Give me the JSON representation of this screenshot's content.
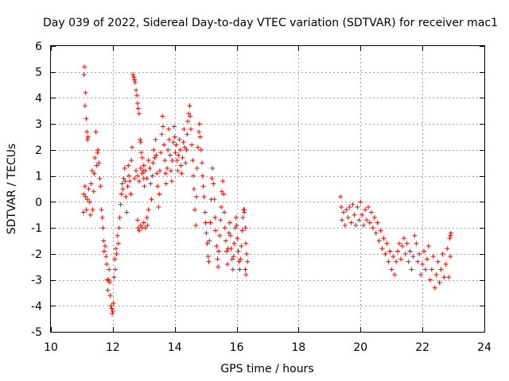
{
  "chart_data": {
    "type": "scatter",
    "title": "Day 039 of 2022, Sidereal Day-to-day VTEC variation (SDTVAR) for receiver mac1",
    "xlabel": "GPS time / hours",
    "ylabel": "SDTVAR / TECUs",
    "xlim": [
      10,
      24
    ],
    "ylim": [
      -5,
      6
    ],
    "x_ticks": [
      "10",
      "12",
      "14",
      "16",
      "18",
      "20",
      "22",
      "24"
    ],
    "y_ticks": [
      "6",
      "5",
      "4",
      "3",
      "2",
      "1",
      "0",
      "-1",
      "-2",
      "-3",
      "-4",
      "-5"
    ],
    "grid": true,
    "marker": "+",
    "series": [
      {
        "name": "SDTVAR",
        "color": "#ff0000",
        "points": [
          [
            11.05,
            -0.4
          ],
          [
            11.06,
            0.3
          ],
          [
            11.07,
            4.9
          ],
          [
            11.08,
            5.2
          ],
          [
            11.1,
            3.7
          ],
          [
            11.12,
            4.2
          ],
          [
            11.14,
            3.2
          ],
          [
            11.16,
            2.7
          ],
          [
            11.18,
            2.4
          ],
          [
            11.2,
            2.5
          ],
          [
            11.1,
            0.6
          ],
          [
            11.12,
            0.2
          ],
          [
            11.15,
            -0.3
          ],
          [
            11.18,
            0.1
          ],
          [
            11.22,
            0.5
          ],
          [
            11.25,
            0.0
          ],
          [
            11.28,
            -0.5
          ],
          [
            11.3,
            0.7
          ],
          [
            11.33,
            1.2
          ],
          [
            11.35,
            -0.3
          ],
          [
            11.38,
            0.4
          ],
          [
            11.4,
            1.1
          ],
          [
            11.42,
            1.7
          ],
          [
            11.45,
            2.7
          ],
          [
            11.48,
            1.4
          ],
          [
            11.5,
            1.9
          ],
          [
            11.52,
            2.0
          ],
          [
            11.55,
            1.5
          ],
          [
            11.58,
            0.9
          ],
          [
            11.6,
            0.6
          ],
          [
            11.63,
            -0.3
          ],
          [
            11.66,
            -0.6
          ],
          [
            11.68,
            -1.0
          ],
          [
            11.7,
            -1.5
          ],
          [
            11.72,
            -1.9
          ],
          [
            11.75,
            -1.7
          ],
          [
            11.78,
            -2.1
          ],
          [
            11.8,
            -2.4
          ],
          [
            11.82,
            -3.0
          ],
          [
            11.84,
            -3.4
          ],
          [
            11.86,
            -3.0
          ],
          [
            11.88,
            -2.6
          ],
          [
            11.9,
            -3.1
          ],
          [
            11.92,
            -3.6
          ],
          [
            11.94,
            -4.0
          ],
          [
            11.96,
            -4.1
          ],
          [
            11.98,
            -4.3
          ],
          [
            12.0,
            -4.2
          ],
          [
            12.02,
            -3.9
          ],
          [
            12.04,
            -2.9
          ],
          [
            12.06,
            -2.2
          ],
          [
            12.08,
            -2.6
          ],
          [
            12.1,
            -1.8
          ],
          [
            12.12,
            -2.0
          ],
          [
            12.15,
            -1.3
          ],
          [
            12.18,
            -1.6
          ],
          [
            12.2,
            -1.0
          ],
          [
            12.22,
            -0.6
          ],
          [
            12.25,
            -0.1
          ],
          [
            12.28,
            0.3
          ],
          [
            12.3,
            0.7
          ],
          [
            12.32,
            0.5
          ],
          [
            12.35,
            0.9
          ],
          [
            12.38,
            1.3
          ],
          [
            12.4,
            0.8
          ],
          [
            12.42,
            0.2
          ],
          [
            12.45,
            -0.4
          ],
          [
            12.48,
            0.6
          ],
          [
            12.5,
            1.4
          ],
          [
            12.52,
            1.0
          ],
          [
            12.55,
            0.8
          ],
          [
            12.58,
            0.3
          ],
          [
            12.6,
            1.6
          ],
          [
            12.62,
            2.1
          ],
          [
            12.65,
            4.9
          ],
          [
            12.68,
            4.8
          ],
          [
            12.7,
            4.7
          ],
          [
            12.72,
            4.6
          ],
          [
            12.75,
            4.3
          ],
          [
            12.78,
            4.1
          ],
          [
            12.8,
            3.8
          ],
          [
            12.82,
            3.6
          ],
          [
            12.85,
            3.4
          ],
          [
            12.88,
            2.4
          ],
          [
            12.9,
            2.3
          ],
          [
            12.92,
            1.9
          ],
          [
            12.95,
            1.7
          ],
          [
            12.98,
            1.2
          ],
          [
            13.0,
            0.9
          ],
          [
            13.02,
            0.6
          ],
          [
            12.8,
            -0.7
          ],
          [
            12.82,
            -1.0
          ],
          [
            12.85,
            -1.1
          ],
          [
            12.9,
            -0.9
          ],
          [
            12.95,
            -1.0
          ],
          [
            13.0,
            -0.8
          ],
          [
            13.05,
            -1.0
          ],
          [
            13.1,
            -0.6
          ],
          [
            13.12,
            -0.9
          ],
          [
            13.15,
            -0.3
          ],
          [
            12.7,
            0.9
          ],
          [
            12.75,
            1.2
          ],
          [
            12.8,
            1.0
          ],
          [
            12.85,
            0.8
          ],
          [
            12.9,
            1.3
          ],
          [
            12.95,
            1.1
          ],
          [
            13.0,
            1.4
          ],
          [
            13.05,
            1.2
          ],
          [
            13.1,
            0.9
          ],
          [
            13.15,
            1.6
          ],
          [
            13.2,
            1.3
          ],
          [
            13.22,
            0.7
          ],
          [
            13.25,
            0.1
          ],
          [
            13.28,
            1.0
          ],
          [
            13.3,
            1.5
          ],
          [
            13.32,
            2.0
          ],
          [
            13.35,
            1.7
          ],
          [
            13.38,
            2.4
          ],
          [
            13.4,
            1.8
          ],
          [
            13.42,
            1.1
          ],
          [
            13.45,
            0.6
          ],
          [
            13.48,
            -0.2
          ],
          [
            13.5,
            0.3
          ],
          [
            13.52,
            1.2
          ],
          [
            13.55,
            1.9
          ],
          [
            13.58,
            2.6
          ],
          [
            13.6,
            3.3
          ],
          [
            13.62,
            2.9
          ],
          [
            13.65,
            2.2
          ],
          [
            13.68,
            1.6
          ],
          [
            13.7,
            1.1
          ],
          [
            13.72,
            0.7
          ],
          [
            13.75,
            1.3
          ],
          [
            13.78,
            2.0
          ],
          [
            13.8,
            2.8
          ],
          [
            13.82,
            2.4
          ],
          [
            13.85,
            1.8
          ],
          [
            13.88,
            1.2
          ],
          [
            13.9,
            0.8
          ],
          [
            13.92,
            1.6
          ],
          [
            13.95,
            2.3
          ],
          [
            13.98,
            2.9
          ],
          [
            14.0,
            2.5
          ],
          [
            14.02,
            1.9
          ],
          [
            14.05,
            2.2
          ],
          [
            14.08,
            1.6
          ],
          [
            14.1,
            1.2
          ],
          [
            14.12,
            1.8
          ],
          [
            14.15,
            2.4
          ],
          [
            14.18,
            2.0
          ],
          [
            14.2,
            1.4
          ],
          [
            14.22,
            1.1
          ],
          [
            14.25,
            1.7
          ],
          [
            14.28,
            2.3
          ],
          [
            14.3,
            2.8
          ],
          [
            14.32,
            2.1
          ],
          [
            14.35,
            1.5
          ],
          [
            14.38,
            2.0
          ],
          [
            14.4,
            2.6
          ],
          [
            14.42,
            3.1
          ],
          [
            14.45,
            3.4
          ],
          [
            14.48,
            3.7
          ],
          [
            14.5,
            3.3
          ],
          [
            14.52,
            2.8
          ],
          [
            14.55,
            2.2
          ],
          [
            14.58,
            1.6
          ],
          [
            14.6,
            1.0
          ],
          [
            14.62,
            0.5
          ],
          [
            14.65,
            -0.3
          ],
          [
            14.68,
            -0.9
          ],
          [
            14.7,
            0.2
          ],
          [
            14.72,
            1.3
          ],
          [
            14.75,
            2.1
          ],
          [
            14.78,
            2.7
          ],
          [
            14.8,
            3.0
          ],
          [
            14.82,
            2.5
          ],
          [
            14.85,
            2.0
          ],
          [
            14.88,
            1.5
          ],
          [
            14.9,
            1.0
          ],
          [
            14.92,
            0.6
          ],
          [
            14.95,
            0.2
          ],
          [
            14.98,
            -0.4
          ],
          [
            15.0,
            -0.8
          ],
          [
            15.02,
            -1.2
          ],
          [
            15.05,
            -1.6
          ],
          [
            15.08,
            -2.1
          ],
          [
            15.1,
            -2.3
          ],
          [
            15.12,
            -1.5
          ],
          [
            15.15,
            -0.8
          ],
          [
            15.18,
            0.1
          ],
          [
            15.2,
            0.9
          ],
          [
            15.22,
            1.3
          ],
          [
            15.25,
            0.7
          ],
          [
            15.28,
            0.1
          ],
          [
            15.3,
            -0.6
          ],
          [
            15.32,
            -1.1
          ],
          [
            15.35,
            -1.7
          ],
          [
            15.38,
            -2.2
          ],
          [
            15.4,
            -2.5
          ],
          [
            15.42,
            -1.9
          ],
          [
            15.45,
            -1.3
          ],
          [
            15.48,
            -0.7
          ],
          [
            15.5,
            -0.2
          ],
          [
            15.52,
            0.4
          ],
          [
            15.55,
            0.8
          ],
          [
            15.58,
            0.3
          ],
          [
            15.6,
            -0.4
          ],
          [
            15.62,
            -1.0
          ],
          [
            15.65,
            -1.5
          ],
          [
            15.68,
            -1.9
          ],
          [
            15.7,
            -2.4
          ],
          [
            15.72,
            -1.8
          ],
          [
            15.75,
            -1.2
          ],
          [
            15.78,
            -0.8
          ],
          [
            15.8,
            -1.3
          ],
          [
            15.82,
            -1.8
          ],
          [
            15.85,
            -2.2
          ],
          [
            15.88,
            -2.6
          ],
          [
            15.9,
            -2.1
          ],
          [
            15.92,
            -1.6
          ],
          [
            15.95,
            -1.0
          ],
          [
            15.98,
            -0.6
          ],
          [
            16.0,
            -0.9
          ],
          [
            16.02,
            -1.4
          ],
          [
            16.05,
            -1.9
          ],
          [
            16.08,
            -2.3
          ],
          [
            16.1,
            -2.6
          ],
          [
            16.12,
            -2.2
          ],
          [
            16.15,
            -1.7
          ],
          [
            16.18,
            -1.1
          ],
          [
            16.2,
            -0.6
          ],
          [
            16.22,
            -0.3
          ],
          [
            16.25,
            -0.4
          ],
          [
            16.28,
            -1.0
          ],
          [
            16.3,
            -1.6
          ],
          [
            16.32,
            -2.0
          ],
          [
            16.35,
            -2.3
          ],
          [
            16.3,
            -2.8
          ],
          [
            16.28,
            -2.6
          ],
          [
            16.25,
            -0.3
          ],
          [
            19.35,
            0.2
          ],
          [
            19.38,
            -0.2
          ],
          [
            19.4,
            -0.7
          ],
          [
            19.45,
            -0.4
          ],
          [
            19.5,
            -0.9
          ],
          [
            19.55,
            -0.3
          ],
          [
            19.6,
            -0.6
          ],
          [
            19.65,
            -0.2
          ],
          [
            19.7,
            -0.8
          ],
          [
            19.75,
            -0.1
          ],
          [
            19.8,
            -0.5
          ],
          [
            19.85,
            -0.9
          ],
          [
            19.9,
            -0.2
          ],
          [
            19.95,
            -0.7
          ],
          [
            20.0,
            0.0
          ],
          [
            20.05,
            -0.5
          ],
          [
            20.1,
            -0.9
          ],
          [
            20.15,
            -0.3
          ],
          [
            20.2,
            -0.7
          ],
          [
            20.25,
            -0.2
          ],
          [
            20.3,
            -0.8
          ],
          [
            20.35,
            -0.4
          ],
          [
            20.4,
            -1.0
          ],
          [
            20.45,
            -0.6
          ],
          [
            20.5,
            -1.2
          ],
          [
            20.55,
            -0.8
          ],
          [
            20.6,
            -1.5
          ],
          [
            20.65,
            -1.1
          ],
          [
            20.7,
            -1.8
          ],
          [
            20.75,
            -1.4
          ],
          [
            20.8,
            -2.0
          ],
          [
            20.85,
            -1.6
          ],
          [
            20.9,
            -2.3
          ],
          [
            20.95,
            -1.9
          ],
          [
            21.0,
            -2.6
          ],
          [
            21.05,
            -2.1
          ],
          [
            21.1,
            -2.8
          ],
          [
            21.15,
            -2.3
          ],
          [
            21.2,
            -1.9
          ],
          [
            21.25,
            -1.6
          ],
          [
            21.3,
            -2.2
          ],
          [
            21.35,
            -1.7
          ],
          [
            21.4,
            -1.4
          ],
          [
            21.45,
            -2.0
          ],
          [
            21.5,
            -1.6
          ],
          [
            21.55,
            -2.3
          ],
          [
            21.6,
            -1.9
          ],
          [
            21.65,
            -2.6
          ],
          [
            21.7,
            -2.1
          ],
          [
            21.75,
            -1.3
          ],
          [
            21.8,
            -1.6
          ],
          [
            21.85,
            -2.3
          ],
          [
            21.9,
            -2.0
          ],
          [
            21.95,
            -2.8
          ],
          [
            22.0,
            -2.4
          ],
          [
            22.05,
            -1.9
          ],
          [
            22.1,
            -2.6
          ],
          [
            22.15,
            -2.2
          ],
          [
            22.2,
            -1.7
          ],
          [
            22.25,
            -3.0
          ],
          [
            22.3,
            -2.6
          ],
          [
            22.35,
            -2.1
          ],
          [
            22.4,
            -3.3
          ],
          [
            22.45,
            -2.8
          ],
          [
            22.5,
            -2.3
          ],
          [
            22.55,
            -3.1
          ],
          [
            22.6,
            -2.6
          ],
          [
            22.65,
            -2.0
          ],
          [
            22.7,
            -2.9
          ],
          [
            22.75,
            -2.4
          ],
          [
            22.8,
            -1.8
          ],
          [
            22.85,
            -2.9
          ],
          [
            22.88,
            -1.4
          ],
          [
            22.9,
            -2.1
          ],
          [
            22.9,
            -1.3
          ],
          [
            22.92,
            -1.2
          ]
        ]
      }
    ]
  }
}
